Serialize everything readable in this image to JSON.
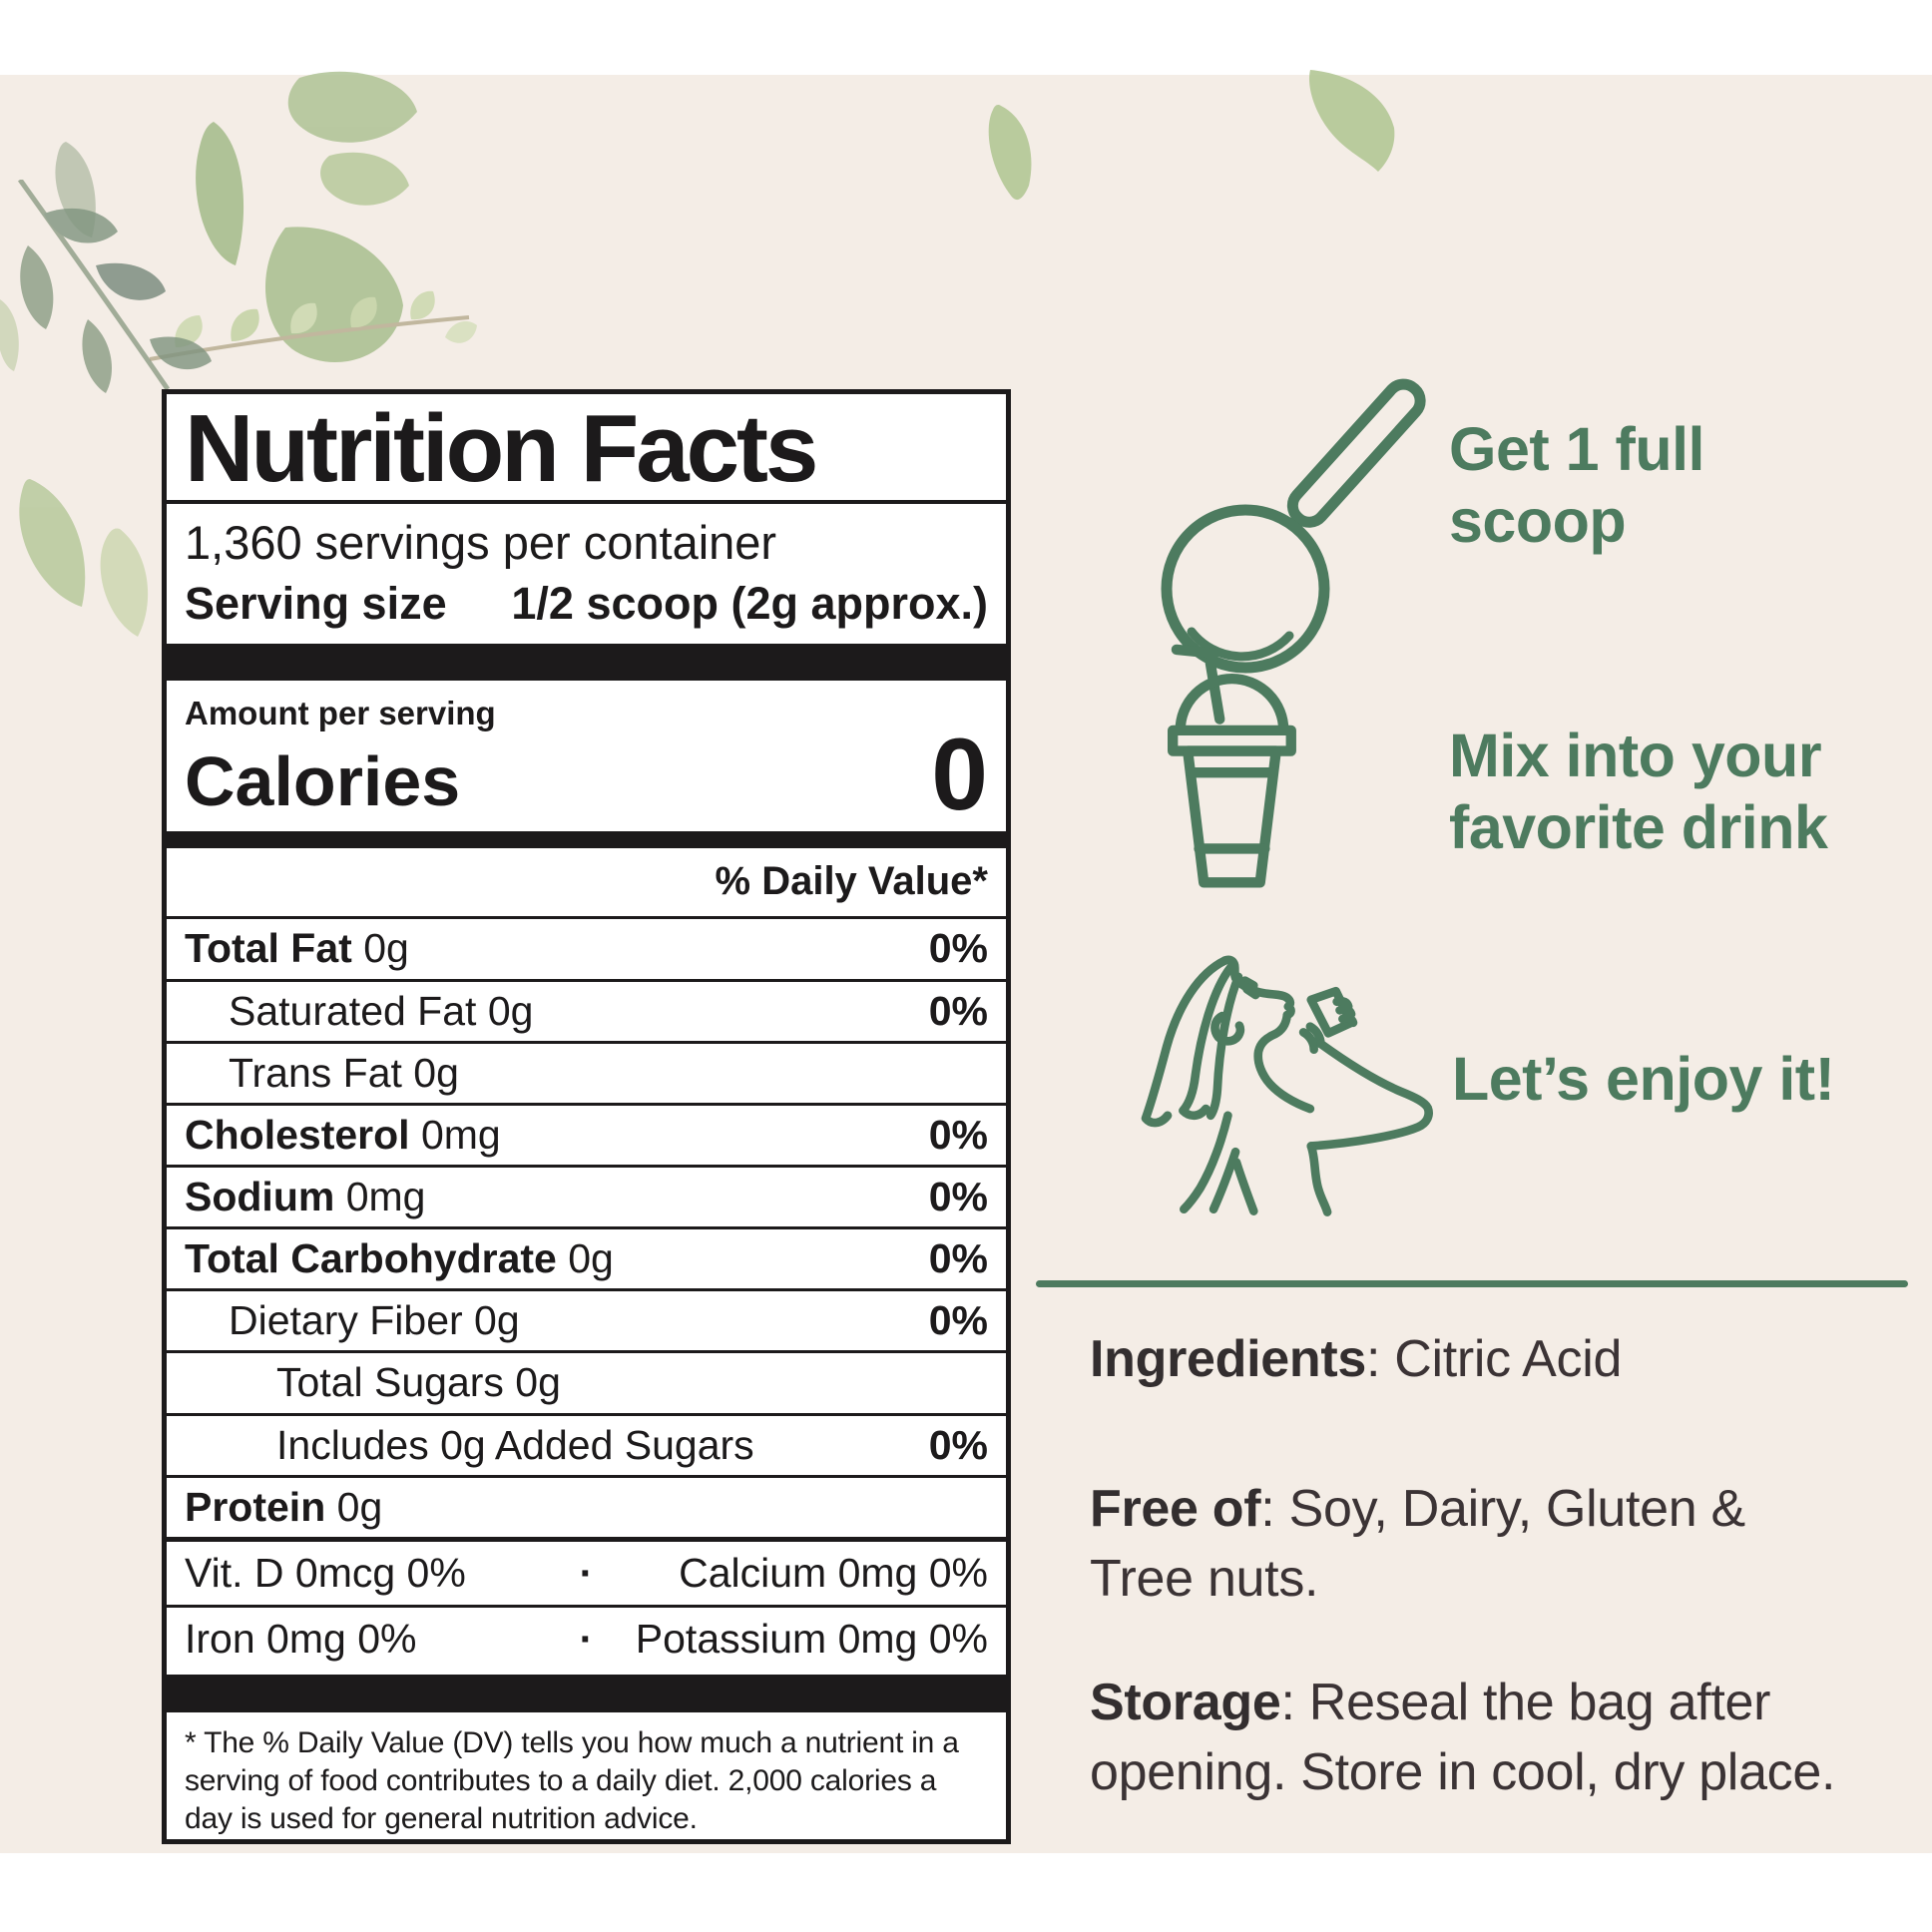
{
  "colors": {
    "background": "#f4ede6",
    "accent_green": "#4d7b5f",
    "label_black": "#1c1a1b",
    "text_dark": "#3b3335",
    "white": "#ffffff"
  },
  "nutrition_label": {
    "title": "Nutrition Facts",
    "servings_per_container": "1,360 servings per container",
    "serving_size_label": "Serving size",
    "serving_size_value": "1/2 scoop (2g approx.)",
    "amount_per_serving": "Amount per serving",
    "calories_label": "Calories",
    "calories_value": "0",
    "daily_value_header": "% Daily Value*",
    "rows": [
      {
        "name": "Total Fat",
        "amount": "0g",
        "dv": "0%",
        "bold": true,
        "indent": 0
      },
      {
        "name": "Saturated Fat",
        "amount": "0g",
        "dv": "0%",
        "bold": false,
        "indent": 1
      },
      {
        "name": "Trans Fat",
        "amount": "0g",
        "dv": "",
        "bold": false,
        "indent": 1
      },
      {
        "name": "Cholesterol",
        "amount": "0mg",
        "dv": "0%",
        "bold": true,
        "indent": 0
      },
      {
        "name": "Sodium",
        "amount": "0mg",
        "dv": "0%",
        "bold": true,
        "indent": 0
      },
      {
        "name": "Total Carbohydrate",
        "amount": "0g",
        "dv": "0%",
        "bold": true,
        "indent": 0
      },
      {
        "name": "Dietary Fiber",
        "amount": "0g",
        "dv": "0%",
        "bold": false,
        "indent": 1
      },
      {
        "name": "Total Sugars",
        "amount": "0g",
        "dv": "",
        "bold": false,
        "indent": 2
      },
      {
        "name": "Includes 0g Added Sugars",
        "amount": "",
        "dv": "0%",
        "bold": false,
        "indent": 2
      },
      {
        "name": "Protein",
        "amount": "0g",
        "dv": "",
        "bold": true,
        "indent": 0
      }
    ],
    "micro_separator": "·",
    "micronutrients": [
      {
        "left": "Vit. D 0mcg 0%",
        "right": "Calcium 0mg 0%"
      },
      {
        "left": "Iron 0mg 0%",
        "right": "Potassium 0mg 0%"
      }
    ],
    "footnote": "* The % Daily Value (DV) tells you how much a nutrient in a serving of food contributes to a daily diet. 2,000 calories a day is used for general nutrition advice."
  },
  "steps": [
    {
      "icon": "scoop-icon",
      "label": "Get 1 full scoop"
    },
    {
      "icon": "cup-icon",
      "label": "Mix into your favorite drink"
    },
    {
      "icon": "drinking-woman-icon",
      "label": "Let’s enjoy it!"
    }
  ],
  "info": {
    "ingredients_label": "Ingredients",
    "ingredients_value": ": Citric Acid",
    "free_of_label": "Free of",
    "free_of_value": ": Soy, Dairy, Gluten & Tree nuts.",
    "storage_label": "Storage",
    "storage_value": ": Reseal the bag after opening. Store in cool, dry place."
  }
}
